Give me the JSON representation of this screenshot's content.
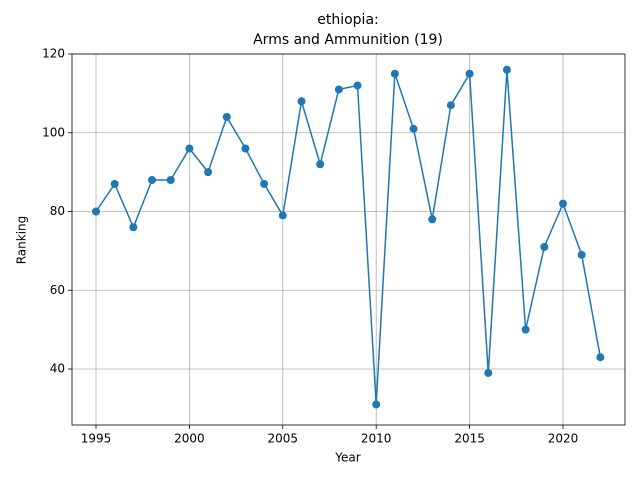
{
  "chart_data": {
    "type": "line",
    "title": [
      "ethiopia:",
      "Arms and Ammunition (19)"
    ],
    "xlabel": "Year",
    "ylabel": "Ranking",
    "x": [
      1995,
      1996,
      1997,
      1998,
      1999,
      2000,
      2001,
      2002,
      2003,
      2004,
      2005,
      2006,
      2007,
      2008,
      2009,
      2010,
      2011,
      2012,
      2013,
      2014,
      2015,
      2016,
      2017,
      2018,
      2019,
      2020,
      2021,
      2022
    ],
    "series": [
      {
        "color": "#1f77b4",
        "values": [
          80,
          87,
          76,
          88,
          88,
          96,
          90,
          104,
          96,
          87,
          79,
          108,
          92,
          111,
          112,
          31,
          115,
          101,
          78,
          107,
          115,
          39,
          116,
          50,
          71,
          82,
          69,
          43
        ]
      }
    ],
    "xlim": [
      1993.715,
      2023.32
    ],
    "ylim": [
      25.78,
      120
    ],
    "xticks": [
      1995,
      2000,
      2005,
      2010,
      2015,
      2020
    ],
    "yticks": [
      40,
      60,
      80,
      100,
      120
    ],
    "grid": true,
    "marker": "circle"
  }
}
